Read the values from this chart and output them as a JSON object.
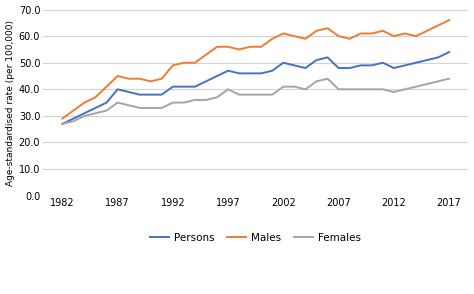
{
  "years": [
    1982,
    1983,
    1984,
    1985,
    1986,
    1987,
    1988,
    1989,
    1990,
    1991,
    1992,
    1993,
    1994,
    1995,
    1996,
    1997,
    1998,
    1999,
    2000,
    2001,
    2002,
    2003,
    2004,
    2005,
    2006,
    2007,
    2008,
    2009,
    2010,
    2011,
    2012,
    2013,
    2014,
    2015,
    2016,
    2017
  ],
  "persons": [
    27,
    29,
    31,
    33,
    35,
    40,
    39,
    38,
    38,
    38,
    41,
    41,
    41,
    43,
    45,
    47,
    46,
    46,
    46,
    47,
    50,
    49,
    48,
    51,
    52,
    48,
    48,
    49,
    49,
    50,
    48,
    49,
    50,
    51,
    52,
    54
  ],
  "males": [
    29,
    32,
    35,
    37,
    41,
    45,
    44,
    44,
    43,
    44,
    49,
    50,
    50,
    53,
    56,
    56,
    55,
    56,
    56,
    59,
    61,
    60,
    59,
    62,
    63,
    60,
    59,
    61,
    61,
    62,
    60,
    61,
    60,
    62,
    64,
    66
  ],
  "females": [
    27,
    28,
    30,
    31,
    32,
    35,
    34,
    33,
    33,
    33,
    35,
    35,
    36,
    36,
    37,
    40,
    38,
    38,
    38,
    38,
    41,
    41,
    40,
    43,
    44,
    40,
    40,
    40,
    40,
    40,
    39,
    40,
    41,
    42,
    43,
    44
  ],
  "persons_color": "#4472C4",
  "males_color": "#ED7D31",
  "females_color": "#A5A5A5",
  "ylabel": "Age-standardised rate (per 100,000)",
  "ylim": [
    0,
    70
  ],
  "yticks": [
    0.0,
    10.0,
    20.0,
    30.0,
    40.0,
    50.0,
    60.0,
    70.0
  ],
  "xticks": [
    1982,
    1987,
    1992,
    1997,
    2002,
    2007,
    2012,
    2017
  ],
  "legend_labels": [
    "Persons",
    "Males",
    "Females"
  ],
  "background_color": "#ffffff",
  "grid_color": "#d3d3d3",
  "linewidth": 1.4
}
